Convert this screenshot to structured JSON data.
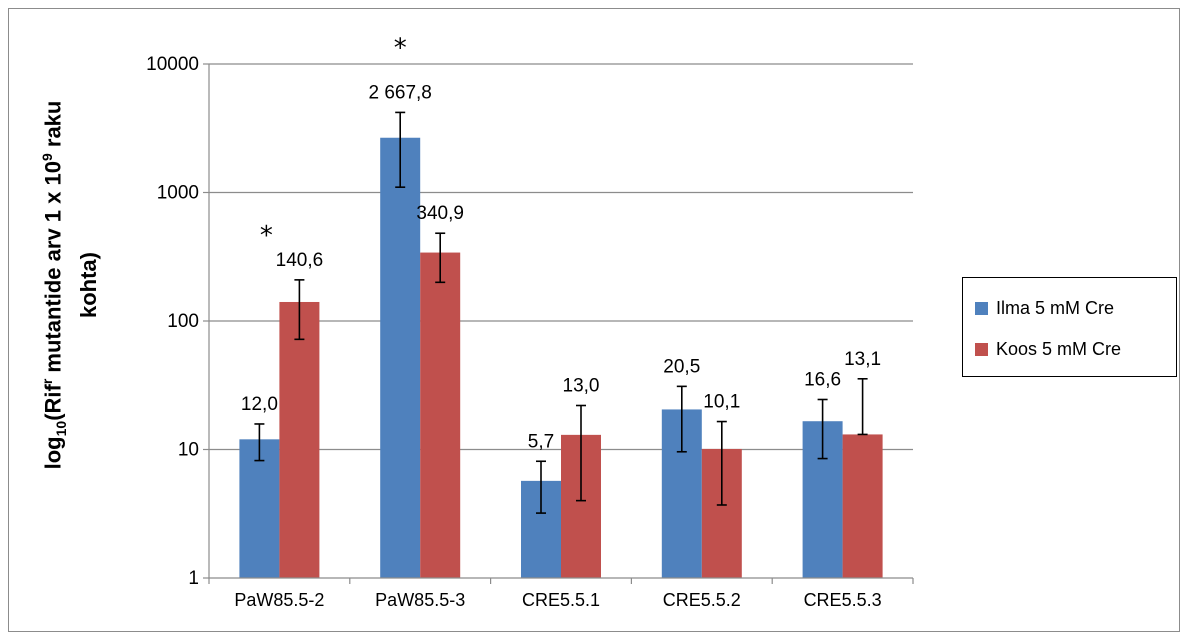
{
  "chart_data": {
    "type": "bar",
    "y_scale": "log",
    "ylim": [
      1,
      10000
    ],
    "y_ticks": [
      "1",
      "10",
      "100",
      "1000",
      "10000"
    ],
    "y_tick_values": [
      1,
      10,
      100,
      1000,
      10000
    ],
    "grid": "horizontal",
    "legend_position": "right",
    "categories": [
      "PaW85.5-2",
      "PaW85.5-3",
      "CRE5.5.1",
      "CRE5.5.2",
      "CRE5.5.3"
    ],
    "ylabel": {
      "prefix": "log",
      "sub": "10",
      "mid": "(Rif",
      "sup": "r",
      "rest_line1": " mutantide arv 1 x 10",
      "sup2": "9",
      "rest_line1_end": " raku",
      "line2": "kohta)"
    },
    "series": [
      {
        "name": "Ilma 5 mM Cre",
        "color": "#4f81bd",
        "values": [
          12.0,
          2667.8,
          5.7,
          20.5,
          16.6
        ],
        "labels": [
          "12,0",
          "2 667,8",
          "5,7",
          "20,5",
          "16,6"
        ],
        "error_low": [
          8.2,
          1100,
          3.2,
          9.6,
          8.5
        ],
        "error_high": [
          15.8,
          4200,
          8.1,
          31,
          24.5
        ]
      },
      {
        "name": "Koos 5 mM Cre",
        "color": "#c0504d",
        "values": [
          140.6,
          340.9,
          13.0,
          10.1,
          13.1
        ],
        "labels": [
          "140,6",
          "340,9",
          "13,0",
          "10,1",
          "13,1"
        ],
        "error_low": [
          72,
          200,
          4.0,
          3.7,
          13.1
        ],
        "error_high": [
          209,
          482,
          22,
          16.5,
          35.5
        ]
      }
    ],
    "annotations": [
      {
        "text": "*",
        "category_index": 0,
        "series_index": 1
      },
      {
        "text": "*",
        "category_index": 1,
        "series_index": 0
      }
    ]
  }
}
